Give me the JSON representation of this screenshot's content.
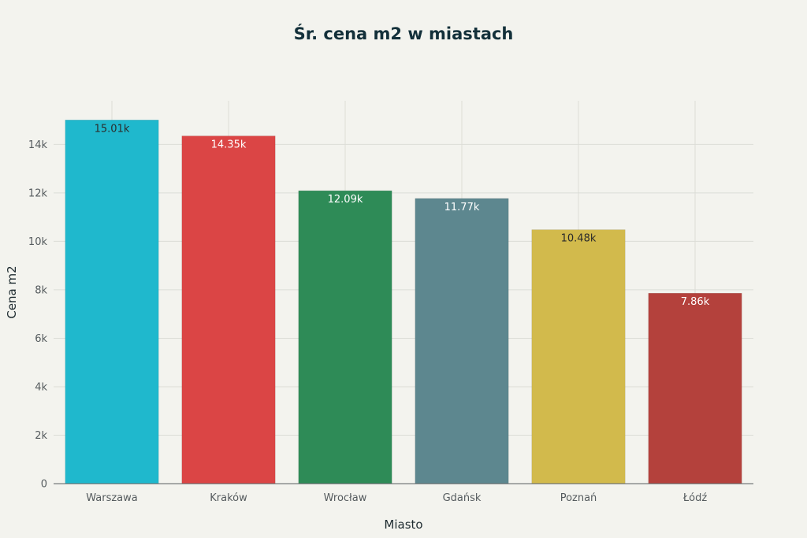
{
  "chart_data": {
    "type": "bar",
    "title": "Śr. cena m2 w miastach",
    "xlabel": "Miasto",
    "ylabel": "Cena m2",
    "categories": [
      "Warszawa",
      "Kraków",
      "Wrocław",
      "Gdańsk",
      "Poznań",
      "Łódź"
    ],
    "values": [
      15010,
      14350,
      12090,
      11770,
      10480,
      7860
    ],
    "data_labels": [
      "15.01k",
      "14.35k",
      "12.09k",
      "11.77k",
      "10.48k",
      "7.86k"
    ],
    "colors": [
      "#1fb8cd",
      "#db4545",
      "#2e8b57",
      "#5d878f",
      "#d2ba4c",
      "#b4413c"
    ],
    "label_colors": [
      "#2b2b2b",
      "#ffffff",
      "#ffffff",
      "#ffffff",
      "#2b2b2b",
      "#ffffff"
    ],
    "ylim": [
      0,
      15800
    ],
    "yticks": [
      0,
      2000,
      4000,
      6000,
      8000,
      10000,
      12000,
      14000
    ],
    "ytick_labels": [
      "0",
      "2k",
      "4k",
      "6k",
      "8k",
      "10k",
      "12k",
      "14k"
    ],
    "grid": true,
    "legend": "none"
  }
}
